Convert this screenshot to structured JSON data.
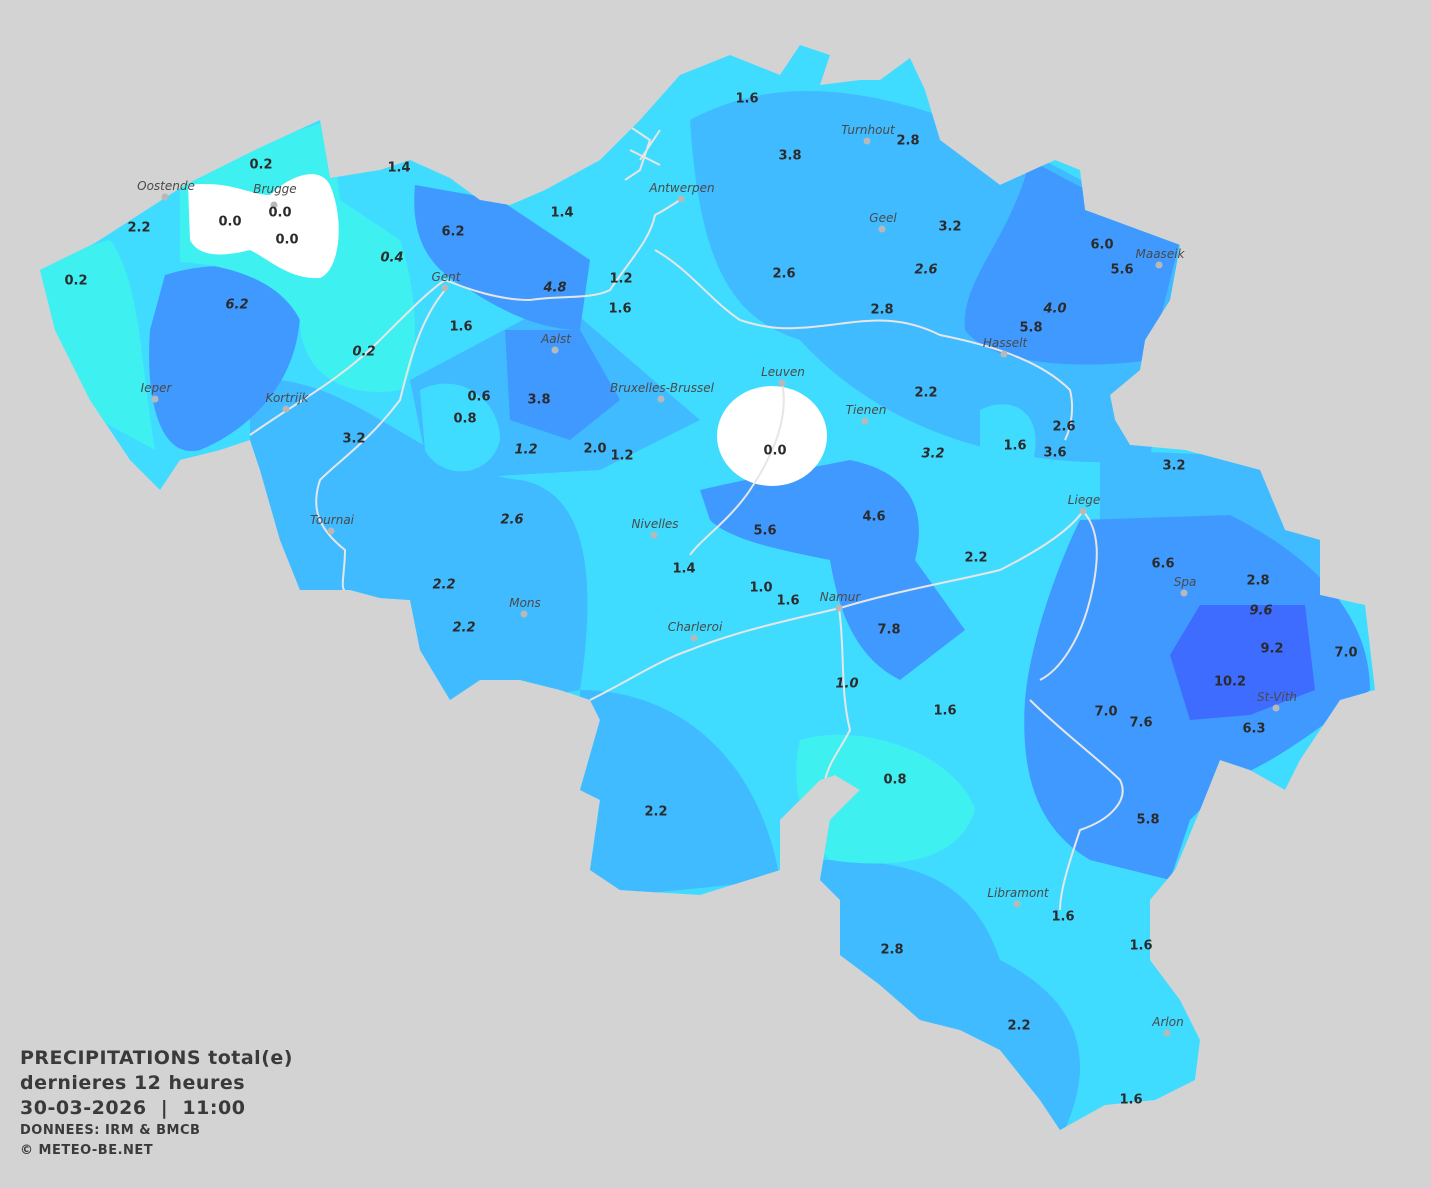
{
  "title": {
    "line1": "PRECIPITATIONS total(e)",
    "line2": "dernieres 12 heures",
    "datetime": "30-03-2026  |  11:00",
    "source": "DONNEES: IRM & BMCB",
    "copyright": "© METEO-BE.NET"
  },
  "colors": {
    "background": "#d3d3d3",
    "zero": "#ffffff",
    "cyan": "#3ef0f0",
    "light_blue": "#40dcff",
    "mid_blue": "#40bbff",
    "dark_blue": "#4099ff",
    "darkest_blue": "#3d6cff",
    "rivers": "#e6e6e6"
  },
  "units": "mm",
  "cities": [
    "Oostende",
    "Brugge",
    "Gent",
    "Antwerpen",
    "Turnhout",
    "Geel",
    "Maaseik",
    "Hasselt",
    "Aalst",
    "Bruxelles-Brussel",
    "Leuven",
    "Tienen",
    "Ieper",
    "Kortrijk",
    "Tournai",
    "Nivelles",
    "Liege",
    "Spa",
    "Mons",
    "Charleroi",
    "Namur",
    "St-Vith",
    "Libramont",
    "Arlon"
  ],
  "values": [
    {
      "v": "0.2",
      "i": false
    },
    {
      "v": "2.2",
      "i": false
    },
    {
      "v": "0.2",
      "i": false
    },
    {
      "v": "0.0",
      "i": false
    },
    {
      "v": "0.0",
      "i": false
    },
    {
      "v": "0.0",
      "i": false
    },
    {
      "v": "1.4",
      "i": false
    },
    {
      "v": "0.4",
      "i": true
    },
    {
      "v": "6.2",
      "i": false
    },
    {
      "v": "6.2",
      "i": true
    },
    {
      "v": "4.8",
      "i": true
    },
    {
      "v": "1.2",
      "i": false
    },
    {
      "v": "1.6",
      "i": false
    },
    {
      "v": "1.4",
      "i": false
    },
    {
      "v": "1.6",
      "i": false
    },
    {
      "v": "3.8",
      "i": false
    },
    {
      "v": "2.8",
      "i": false
    },
    {
      "v": "3.2",
      "i": false
    },
    {
      "v": "2.6",
      "i": false
    },
    {
      "v": "2.6",
      "i": true
    },
    {
      "v": "2.8",
      "i": false
    },
    {
      "v": "6.0",
      "i": false
    },
    {
      "v": "5.6",
      "i": false
    },
    {
      "v": "4.0",
      "i": true
    },
    {
      "v": "5.8",
      "i": false
    },
    {
      "v": "1.6",
      "i": false
    },
    {
      "v": "0.2",
      "i": true
    },
    {
      "v": "0.6",
      "i": false
    },
    {
      "v": "0.8",
      "i": false
    },
    {
      "v": "3.8",
      "i": false
    },
    {
      "v": "3.2",
      "i": false
    },
    {
      "v": "1.2",
      "i": true
    },
    {
      "v": "2.0",
      "i": false
    },
    {
      "v": "1.2",
      "i": false
    },
    {
      "v": "0.0",
      "i": false
    },
    {
      "v": "2.2",
      "i": false
    },
    {
      "v": "3.2",
      "i": true
    },
    {
      "v": "1.6",
      "i": false
    },
    {
      "v": "2.6",
      "i": false
    },
    {
      "v": "3.6",
      "i": false
    },
    {
      "v": "3.2",
      "i": false
    },
    {
      "v": "2.6",
      "i": true
    },
    {
      "v": "5.6",
      "i": false
    },
    {
      "v": "4.6",
      "i": false
    },
    {
      "v": "2.2",
      "i": false
    },
    {
      "v": "6.6",
      "i": false
    },
    {
      "v": "2.8",
      "i": false
    },
    {
      "v": "9.6",
      "i": true
    },
    {
      "v": "9.2",
      "i": false
    },
    {
      "v": "7.0",
      "i": false
    },
    {
      "v": "10.2",
      "i": false
    },
    {
      "v": "6.3",
      "i": false
    },
    {
      "v": "7.0",
      "i": false
    },
    {
      "v": "7.6",
      "i": false
    },
    {
      "v": "2.2",
      "i": true
    },
    {
      "v": "2.2",
      "i": true
    },
    {
      "v": "1.4",
      "i": false
    },
    {
      "v": "1.0",
      "i": false
    },
    {
      "v": "1.6",
      "i": false
    },
    {
      "v": "7.8",
      "i": false
    },
    {
      "v": "1.0",
      "i": true
    },
    {
      "v": "1.6",
      "i": false
    },
    {
      "v": "0.8",
      "i": false
    },
    {
      "v": "2.2",
      "i": false
    },
    {
      "v": "5.8",
      "i": false
    },
    {
      "v": "1.6",
      "i": false
    },
    {
      "v": "1.6",
      "i": false
    },
    {
      "v": "2.8",
      "i": false
    },
    {
      "v": "2.2",
      "i": false
    },
    {
      "v": "1.6",
      "i": false
    }
  ]
}
